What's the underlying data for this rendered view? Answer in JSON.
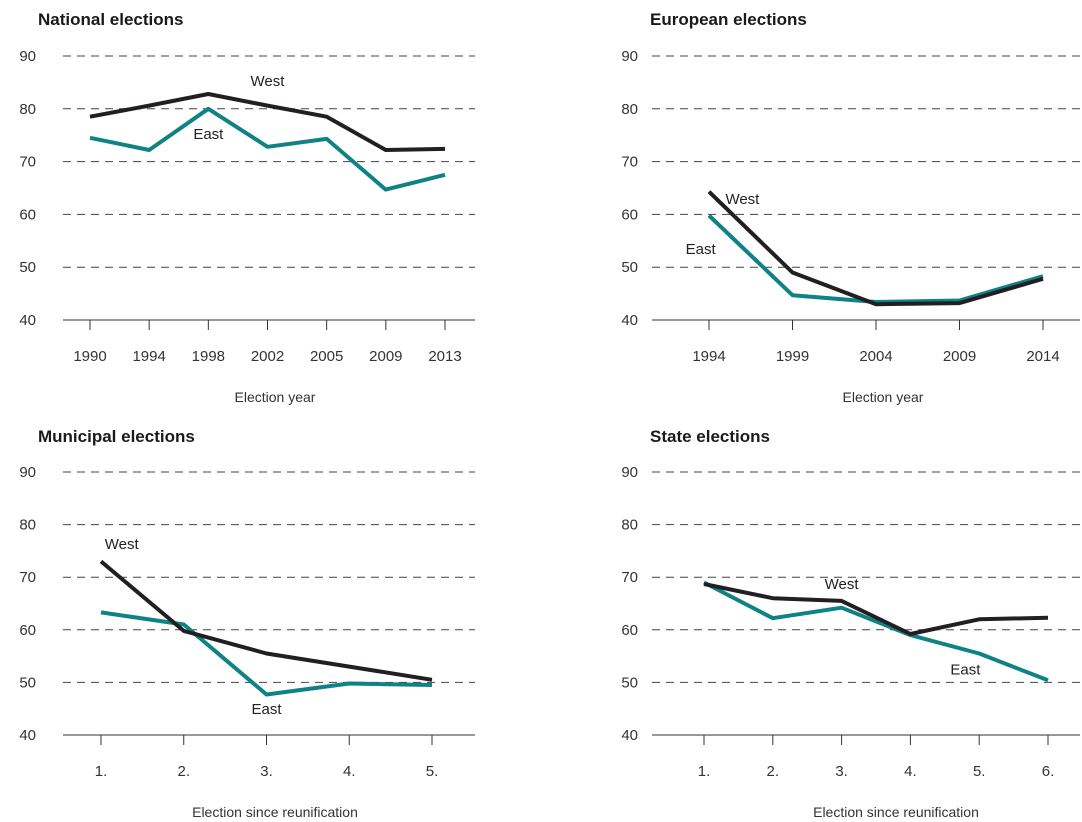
{
  "colors": {
    "west": "#231f20",
    "east": "#0f8286"
  },
  "chart_data": [
    {
      "type": "line",
      "title": "National elections",
      "xlabel": "Election year",
      "ylabel": "",
      "ylim": [
        40,
        90
      ],
      "yticks": [
        "40",
        "50",
        "60",
        "70",
        "80",
        "90"
      ],
      "categories": [
        "1990",
        "1994",
        "1998",
        "2002",
        "2005",
        "2009",
        "2013"
      ],
      "series": [
        {
          "name": "West",
          "key": "west",
          "values": [
            78.5,
            80.6,
            82.8,
            80.6,
            78.5,
            72.2,
            72.4
          ]
        },
        {
          "name": "East",
          "key": "east",
          "values": [
            74.5,
            72.2,
            80.0,
            72.8,
            74.3,
            64.7,
            67.5
          ]
        }
      ],
      "labels": [
        {
          "text": "West",
          "category": "2002",
          "value": 84.3
        },
        {
          "text": "East",
          "category": "1998",
          "value": 74.3
        }
      ]
    },
    {
      "type": "line",
      "title": "European elections",
      "xlabel": "Election year",
      "ylabel": "",
      "ylim": [
        40,
        90
      ],
      "yticks": [
        "40",
        "50",
        "60",
        "70",
        "80",
        "90"
      ],
      "categories": [
        "1994",
        "1999",
        "2004",
        "2009",
        "2014"
      ],
      "series": [
        {
          "name": "West",
          "key": "west",
          "values": [
            64.3,
            49.0,
            43.0,
            43.2,
            47.8
          ]
        },
        {
          "name": "East",
          "key": "east",
          "values": [
            59.8,
            44.7,
            43.4,
            43.7,
            48.3
          ]
        }
      ],
      "labels": [
        {
          "text": "West",
          "category": "1994",
          "value": 62.0,
          "offset": 0.4
        },
        {
          "text": "East",
          "category": "1994",
          "value": 52.5,
          "offset": -0.1
        }
      ]
    },
    {
      "type": "line",
      "title": "Municipal elections",
      "xlabel": "Election since reunification",
      "ylabel": "",
      "ylim": [
        40,
        90
      ],
      "yticks": [
        "40",
        "50",
        "60",
        "70",
        "80",
        "90"
      ],
      "categories": [
        "1.",
        "2.",
        "3.",
        "4.",
        "5."
      ],
      "series": [
        {
          "name": "West",
          "key": "west",
          "values": [
            73.0,
            59.8,
            55.5,
            53.0,
            50.5
          ]
        },
        {
          "name": "East",
          "key": "east",
          "values": [
            63.3,
            61.0,
            47.7,
            49.8,
            49.5
          ]
        }
      ],
      "labels": [
        {
          "text": "West",
          "category": "1.",
          "value": 75.4,
          "offset": 0.25
        },
        {
          "text": "East",
          "category": "3.",
          "value": 44.0
        }
      ]
    },
    {
      "type": "line",
      "title": "State elections",
      "xlabel": "Election since reunification",
      "ylabel": "",
      "ylim": [
        40,
        90
      ],
      "yticks": [
        "40",
        "50",
        "60",
        "70",
        "80",
        "90"
      ],
      "categories": [
        "1.",
        "2.",
        "3.",
        "4.",
        "5.",
        "6."
      ],
      "series": [
        {
          "name": "West",
          "key": "west",
          "values": [
            68.7,
            66.0,
            65.5,
            59.2,
            62.0,
            62.3
          ]
        },
        {
          "name": "East",
          "key": "east",
          "values": [
            69.0,
            62.2,
            64.2,
            59.0,
            55.5,
            50.4
          ]
        }
      ],
      "labels": [
        {
          "text": "West",
          "category": "3.",
          "value": 67.8
        },
        {
          "text": "East",
          "category": "5.",
          "value": 51.5,
          "offset": -0.2
        }
      ]
    }
  ]
}
